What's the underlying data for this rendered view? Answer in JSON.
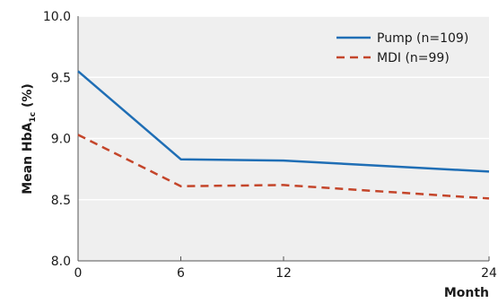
{
  "chart_data": {
    "type": "line",
    "xlabel": "Month",
    "ylabel": {
      "main": "Mean HbA",
      "sub": "1c",
      "suffix": " (%)"
    },
    "x": [
      0,
      6,
      12,
      24
    ],
    "xticks": [
      0,
      6,
      12,
      24
    ],
    "yticks": [
      "8.0",
      "8.5",
      "9.0",
      "9.5",
      "10.0"
    ],
    "xlim": [
      0,
      24
    ],
    "ylim": [
      8.0,
      10.0
    ],
    "grid": "horizontal",
    "legend_position": "top-right",
    "background": "#efefef",
    "series": [
      {
        "name": "Pump (n=109)",
        "values": [
          9.55,
          8.83,
          8.82,
          8.73
        ],
        "color": "#1f6eb5",
        "dash": "solid"
      },
      {
        "name": "MDI (n=99)",
        "values": [
          9.03,
          8.61,
          8.62,
          8.51
        ],
        "color": "#c4452a",
        "dash": "dashed"
      }
    ]
  }
}
